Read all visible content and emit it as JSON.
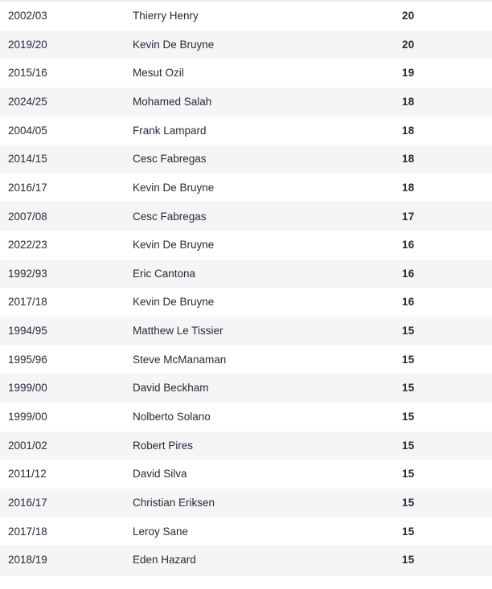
{
  "colors": {
    "text-color": "#262a38",
    "stripe-color": "#f5f5f6",
    "border-color": "#e9e9ee",
    "background": "#ffffff"
  },
  "chart_data": {
    "type": "table",
    "column_keys": [
      "season",
      "player",
      "value"
    ],
    "header_visible": false,
    "striped": true,
    "rows": [
      {
        "season": "2002/03",
        "player": "Thierry Henry",
        "value": "20"
      },
      {
        "season": "2019/20",
        "player": "Kevin De Bruyne",
        "value": "20"
      },
      {
        "season": "2015/16",
        "player": "Mesut Ozil",
        "value": "19"
      },
      {
        "season": "2024/25",
        "player": "Mohamed Salah",
        "value": "18"
      },
      {
        "season": "2004/05",
        "player": "Frank Lampard",
        "value": "18"
      },
      {
        "season": "2014/15",
        "player": "Cesc Fabregas",
        "value": "18"
      },
      {
        "season": "2016/17",
        "player": "Kevin De Bruyne",
        "value": "18"
      },
      {
        "season": "2007/08",
        "player": "Cesc Fabregas",
        "value": "17"
      },
      {
        "season": "2022/23",
        "player": "Kevin De Bruyne",
        "value": "16"
      },
      {
        "season": "1992/93",
        "player": "Eric Cantona",
        "value": "16"
      },
      {
        "season": "2017/18",
        "player": "Kevin De Bruyne",
        "value": "16"
      },
      {
        "season": "1994/95",
        "player": "Matthew Le Tissier",
        "value": "15"
      },
      {
        "season": "1995/96",
        "player": "Steve McManaman",
        "value": "15"
      },
      {
        "season": "1999/00",
        "player": "David Beckham",
        "value": "15"
      },
      {
        "season": "1999/00",
        "player": "Nolberto Solano",
        "value": "15"
      },
      {
        "season": "2001/02",
        "player": "Robert Pires",
        "value": "15"
      },
      {
        "season": "2011/12",
        "player": "David Silva",
        "value": "15"
      },
      {
        "season": "2016/17",
        "player": "Christian Eriksen",
        "value": "15"
      },
      {
        "season": "2017/18",
        "player": "Leroy Sane",
        "value": "15"
      },
      {
        "season": "2018/19",
        "player": "Eden Hazard",
        "value": "15"
      }
    ]
  }
}
